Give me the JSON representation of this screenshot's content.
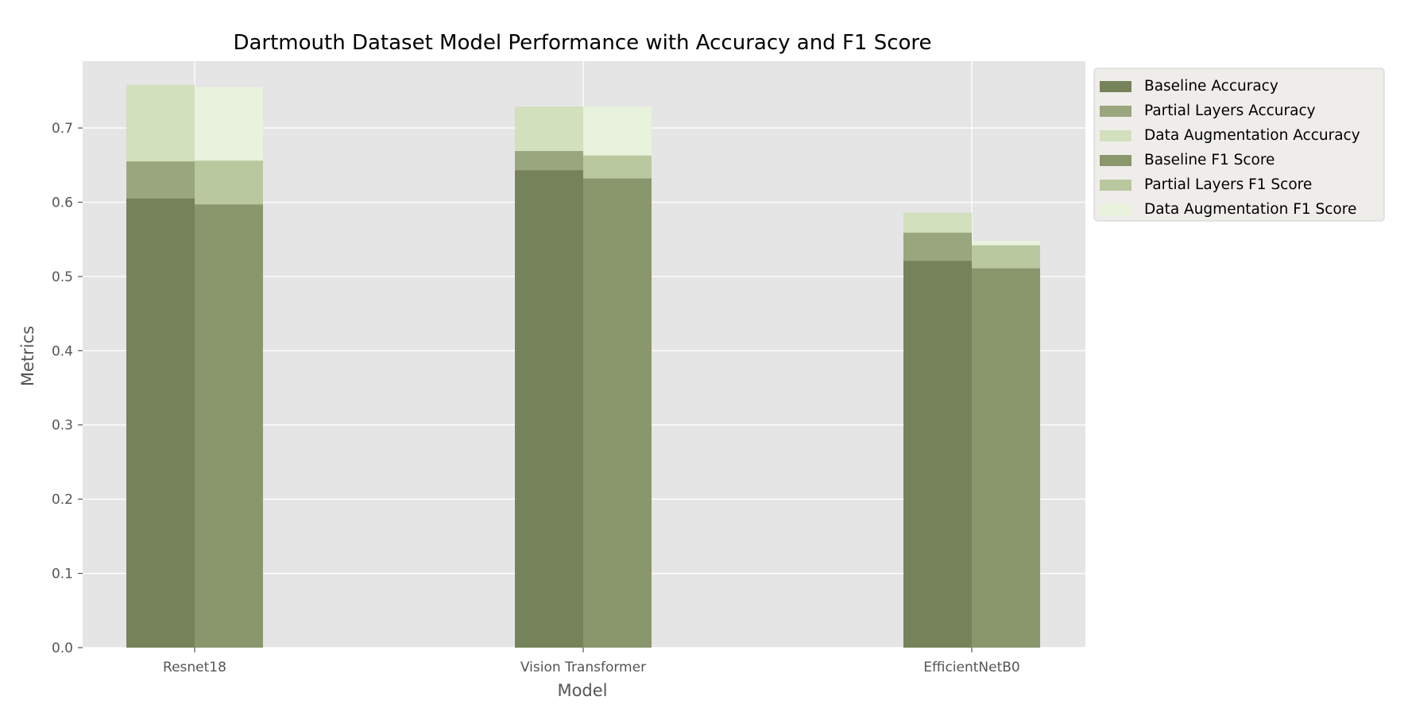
{
  "chart_data": {
    "type": "bar",
    "title": "Dartmouth Dataset Model Performance with Accuracy and F1 Score",
    "xlabel": "Model",
    "ylabel": "Metrics",
    "ylim": [
      0,
      0.79
    ],
    "yticks": [
      "0.0",
      "0.1",
      "0.2",
      "0.3",
      "0.4",
      "0.5",
      "0.6",
      "0.7"
    ],
    "grid": true,
    "legend_position": "outside-right",
    "categories": [
      "Resnet18",
      "Vision Transformer",
      "EfficientNetB0"
    ],
    "series": [
      {
        "name": "Baseline Accuracy",
        "group": "accuracy",
        "values": [
          0.605,
          0.643,
          0.521
        ],
        "color": "#76825a"
      },
      {
        "name": "Partial Layers Accuracy",
        "group": "accuracy",
        "values": [
          0.655,
          0.669,
          0.559
        ],
        "color": "#9aa67d"
      },
      {
        "name": "Data Augmentation Accuracy",
        "group": "accuracy",
        "values": [
          0.758,
          0.729,
          0.586
        ],
        "color": "#d2e0bd"
      },
      {
        "name": "Baseline F1 Score",
        "group": "f1",
        "values": [
          0.597,
          0.632,
          0.511
        ],
        "color": "#8a966c"
      },
      {
        "name": "Partial Layers F1 Score",
        "group": "f1",
        "values": [
          0.656,
          0.663,
          0.542
        ],
        "color": "#b9c89e"
      },
      {
        "name": "Data Augmentation F1 Score",
        "group": "f1",
        "values": [
          0.755,
          0.729,
          0.548
        ],
        "color": "#e8f2dc"
      }
    ],
    "colors": {
      "plot_background": "#e5e5e5",
      "grid": "#ffffff",
      "legend_background": "#efedea",
      "legend_border": "#d0d0d0"
    }
  }
}
